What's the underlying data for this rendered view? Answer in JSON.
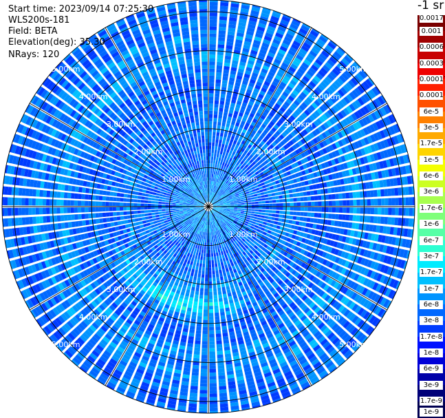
{
  "info": {
    "start_time": "Start time: 2023/09/14 07:25:30",
    "instrument": "WLS200s-181",
    "field": "Field: BETA",
    "elevation": "Elevation(deg): 35.30",
    "nrays": "NRays: 120"
  },
  "colorbar": {
    "unit": "-1 sr",
    "colors": [
      "#7a0000",
      "#a00000",
      "#c80000",
      "#ee0000",
      "#ff2000",
      "#ff5000",
      "#ff8000",
      "#ffaa00",
      "#ffd400",
      "#f4ff00",
      "#ccff22",
      "#a8ff4e",
      "#7eff7a",
      "#56ffa6",
      "#2cffd2",
      "#00ecff",
      "#00c0ff",
      "#0094ff",
      "#0068ff",
      "#003cff",
      "#0010ff",
      "#0000d8",
      "#0000a8",
      "#000078",
      "#000050"
    ],
    "labels": [
      "0.0017",
      "0.001",
      "0.0006",
      "0.0003",
      "0.00017",
      "0.0001",
      "6e-5",
      "3e-5",
      "1.7e-5",
      "1e-5",
      "6e-6",
      "3e-6",
      "1.7e-6",
      "1e-6",
      "6e-7",
      "3e-7",
      "1.7e-7",
      "1e-7",
      "6e-8",
      "3e-8",
      "1.7e-8",
      "1e-8",
      "6e-9",
      "3e-9",
      "1.7e-9",
      "1e-9"
    ]
  },
  "chart_data": {
    "type": "heatmap",
    "projection": "polar-ppi",
    "field": "BETA",
    "nrays": 120,
    "range_rings_km": [
      1,
      2,
      3,
      4,
      5
    ],
    "max_range_km": 5.3,
    "range_labels": [
      "1.00km",
      "2.00km",
      "3.00km",
      "4.00km",
      "5.00km"
    ],
    "spokes_deg": [
      0,
      30,
      60,
      90,
      120,
      150,
      180,
      210,
      240,
      270,
      300,
      330
    ],
    "aerosol_arc": {
      "peak_radius_km": 2.55,
      "azimuth_span_deg": [
        150,
        250
      ],
      "level": "1e-6"
    },
    "rings_high_km": [
      3.8,
      4.35,
      2.05
    ],
    "background_level": "3e-8"
  }
}
